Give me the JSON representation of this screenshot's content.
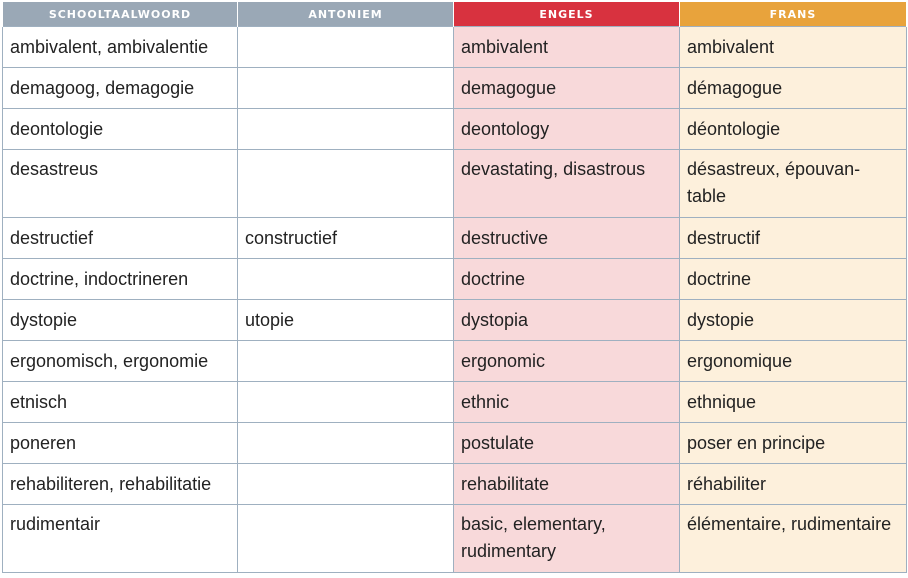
{
  "headers": {
    "schooltaalwoord": "SCHOOLTAALWOORD",
    "antoniem": "ANTONIEM",
    "engels": "ENGELS",
    "frans": "FRANS"
  },
  "colors": {
    "header_grey": "#9aa8b6",
    "header_red": "#d8323f",
    "header_orange": "#e8a33c",
    "english_cell": "#f8d9da",
    "french_cell": "#fdf0dc"
  },
  "rows": [
    {
      "word": "ambivalent, ambivalentie",
      "antonym": "",
      "english": "ambivalent",
      "french": "ambivalent"
    },
    {
      "word": "demagoog, demagogie",
      "antonym": "",
      "english": "demagogue",
      "french": "démagogue"
    },
    {
      "word": "deontologie",
      "antonym": "",
      "english": "deontology",
      "french": "déontologie"
    },
    {
      "word": "desastreus",
      "antonym": "",
      "english": "devastating, disastrous",
      "french": "désastreux, épouvan-table"
    },
    {
      "word": "destructief",
      "antonym": "constructief",
      "english": "destructive",
      "french": "destructif"
    },
    {
      "word": "doctrine, indoctrineren",
      "antonym": "",
      "english": "doctrine",
      "french": "doctrine"
    },
    {
      "word": "dystopie",
      "antonym": "utopie",
      "english": "dystopia",
      "french": "dystopie"
    },
    {
      "word": "ergonomisch, ergonomie",
      "antonym": "",
      "english": "ergonomic",
      "french": "ergonomique"
    },
    {
      "word": "etnisch",
      "antonym": "",
      "english": "ethnic",
      "french": "ethnique"
    },
    {
      "word": "poneren",
      "antonym": "",
      "english": "postulate",
      "french": "poser en principe"
    },
    {
      "word": "rehabiliteren, rehabilitatie",
      "antonym": "",
      "english": "rehabilitate",
      "french": "réhabiliter"
    },
    {
      "word": "rudimentair",
      "antonym": "",
      "english": "basic, elementary, rudimentary",
      "french": "élémentaire, rudimentaire"
    }
  ]
}
